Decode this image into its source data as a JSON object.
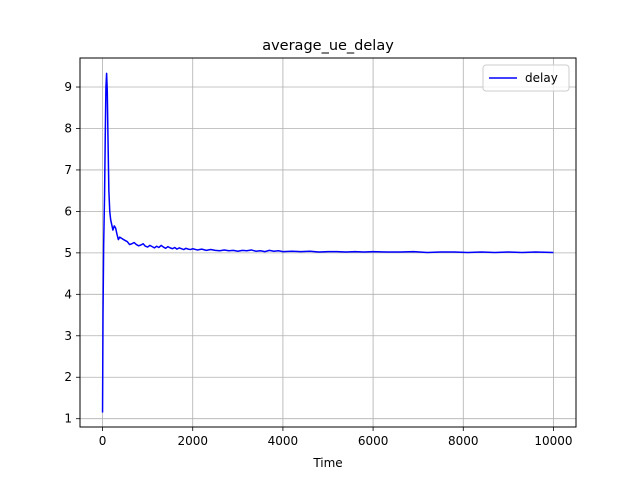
{
  "chart_data": {
    "type": "line",
    "title": "average_ue_delay",
    "xlabel": "Time",
    "ylabel": "",
    "xlim": [
      -500,
      10500
    ],
    "ylim": [
      0.8,
      9.7
    ],
    "xticks": [
      0,
      2000,
      4000,
      6000,
      8000,
      10000
    ],
    "yticks": [
      1,
      2,
      3,
      4,
      5,
      6,
      7,
      8,
      9
    ],
    "grid": true,
    "legend": {
      "position": "top-right"
    },
    "series": [
      {
        "name": "delay",
        "color": "#0000ff",
        "x": [
          0,
          10,
          25,
          45,
          60,
          75,
          90,
          105,
          120,
          140,
          160,
          180,
          200,
          230,
          260,
          290,
          320,
          350,
          380,
          410,
          450,
          500,
          550,
          600,
          650,
          700,
          750,
          800,
          850,
          900,
          950,
          1000,
          1050,
          1100,
          1150,
          1200,
          1250,
          1300,
          1350,
          1400,
          1450,
          1500,
          1550,
          1600,
          1650,
          1700,
          1750,
          1800,
          1850,
          1900,
          1950,
          2000,
          2100,
          2200,
          2300,
          2400,
          2500,
          2600,
          2700,
          2800,
          2900,
          3000,
          3100,
          3200,
          3300,
          3400,
          3500,
          3600,
          3700,
          3800,
          3900,
          4000,
          4200,
          4400,
          4600,
          4800,
          5000,
          5200,
          5400,
          5600,
          5800,
          6000,
          6300,
          6600,
          6900,
          7200,
          7500,
          7800,
          8100,
          8400,
          8700,
          9000,
          9300,
          9600,
          10000
        ],
        "values": [
          1.15,
          3.5,
          5.2,
          6.4,
          7.8,
          9.0,
          9.33,
          8.9,
          7.8,
          6.5,
          6.0,
          5.8,
          5.7,
          5.55,
          5.65,
          5.6,
          5.45,
          5.32,
          5.38,
          5.36,
          5.33,
          5.3,
          5.27,
          5.2,
          5.22,
          5.25,
          5.2,
          5.17,
          5.19,
          5.22,
          5.16,
          5.14,
          5.18,
          5.15,
          5.12,
          5.16,
          5.13,
          5.18,
          5.14,
          5.11,
          5.15,
          5.12,
          5.1,
          5.13,
          5.09,
          5.12,
          5.1,
          5.08,
          5.11,
          5.09,
          5.08,
          5.1,
          5.07,
          5.09,
          5.06,
          5.08,
          5.06,
          5.05,
          5.07,
          5.05,
          5.06,
          5.04,
          5.06,
          5.05,
          5.07,
          5.04,
          5.05,
          5.03,
          5.06,
          5.04,
          5.05,
          5.03,
          5.04,
          5.03,
          5.04,
          5.02,
          5.03,
          5.03,
          5.02,
          5.03,
          5.02,
          5.03,
          5.02,
          5.02,
          5.03,
          5.01,
          5.02,
          5.02,
          5.01,
          5.02,
          5.01,
          5.02,
          5.01,
          5.02,
          5.01
        ]
      }
    ]
  }
}
